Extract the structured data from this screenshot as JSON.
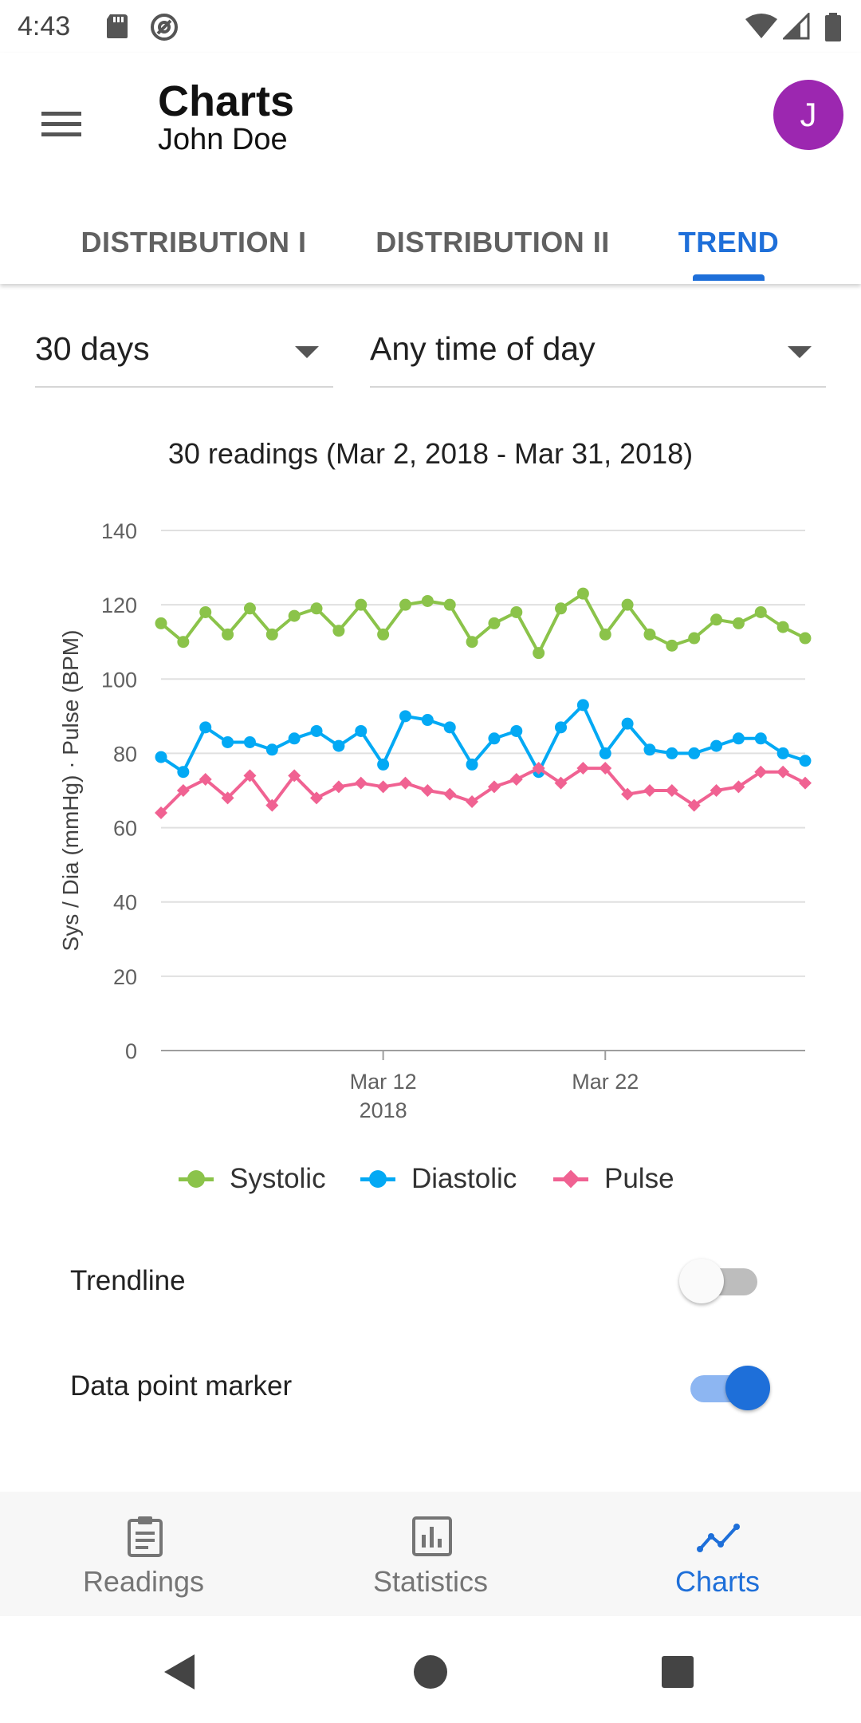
{
  "status_bar": {
    "time": "4:43"
  },
  "app_bar": {
    "title": "Charts",
    "subtitle": "John Doe",
    "avatar_initial": "J",
    "avatar_color": "#9c27b0"
  },
  "tabs": [
    {
      "label": "DISTRIBUTION I",
      "active": false
    },
    {
      "label": "DISTRIBUTION II",
      "active": false
    },
    {
      "label": "TREND",
      "active": true
    }
  ],
  "filters": {
    "period": {
      "value": "30 days"
    },
    "time_of_day": {
      "value": "Any time of day"
    }
  },
  "chart_summary": "30 readings (Mar 2, 2018 - Mar 31, 2018)",
  "chart_data": {
    "type": "line",
    "title": "30 readings (Mar 2, 2018 - Mar 31, 2018)",
    "ylabel": "Sys / Dia (mmHg) · Pulse (BPM)",
    "xlabel": "",
    "ylim": [
      0,
      140
    ],
    "yticks": [
      "0",
      "20",
      "40",
      "60",
      "80",
      "100",
      "120",
      "140"
    ],
    "xticks": [
      {
        "day": 11,
        "label": "Mar 12",
        "sublabel": "2018"
      },
      {
        "day": 21,
        "label": "Mar 22",
        "sublabel": ""
      }
    ],
    "grid": true,
    "legend_position": "bottom",
    "x_days": [
      1,
      2,
      3,
      4,
      5,
      6,
      7,
      8,
      9,
      10,
      11,
      12,
      13,
      14,
      15,
      16,
      17,
      18,
      19,
      20,
      21,
      22,
      23,
      24,
      25,
      26,
      27,
      28,
      29,
      30
    ],
    "series": [
      {
        "name": "Systolic",
        "color": "#8bc34a",
        "marker": "circle",
        "values": [
          115,
          110,
          118,
          112,
          119,
          112,
          117,
          119,
          113,
          120,
          112,
          120,
          121,
          120,
          110,
          115,
          118,
          107,
          119,
          123,
          112,
          120,
          112,
          109,
          111,
          116,
          115,
          118,
          114,
          111
        ]
      },
      {
        "name": "Diastolic",
        "color": "#03a9f4",
        "marker": "circle",
        "values": [
          79,
          75,
          87,
          83,
          83,
          81,
          84,
          86,
          82,
          86,
          77,
          90,
          89,
          87,
          77,
          84,
          86,
          75,
          87,
          93,
          80,
          88,
          81,
          80,
          80,
          82,
          84,
          84,
          80,
          78
        ]
      },
      {
        "name": "Pulse",
        "color": "#f06292",
        "marker": "diamond",
        "values": [
          64,
          70,
          73,
          68,
          74,
          66,
          74,
          68,
          71,
          72,
          71,
          72,
          70,
          69,
          67,
          71,
          73,
          76,
          72,
          76,
          76,
          69,
          70,
          70,
          66,
          70,
          71,
          75,
          75,
          72
        ]
      }
    ]
  },
  "settings": {
    "trendline": {
      "label": "Trendline",
      "on": false
    },
    "data_point_marker": {
      "label": "Data point marker",
      "on": true
    }
  },
  "bottom_nav": [
    {
      "label": "Readings",
      "icon": "clipboard-icon",
      "active": false
    },
    {
      "label": "Statistics",
      "icon": "bar-chart-icon",
      "active": false
    },
    {
      "label": "Charts",
      "icon": "trend-line-icon",
      "active": true
    }
  ],
  "colors": {
    "accent": "#1e6fd9"
  }
}
